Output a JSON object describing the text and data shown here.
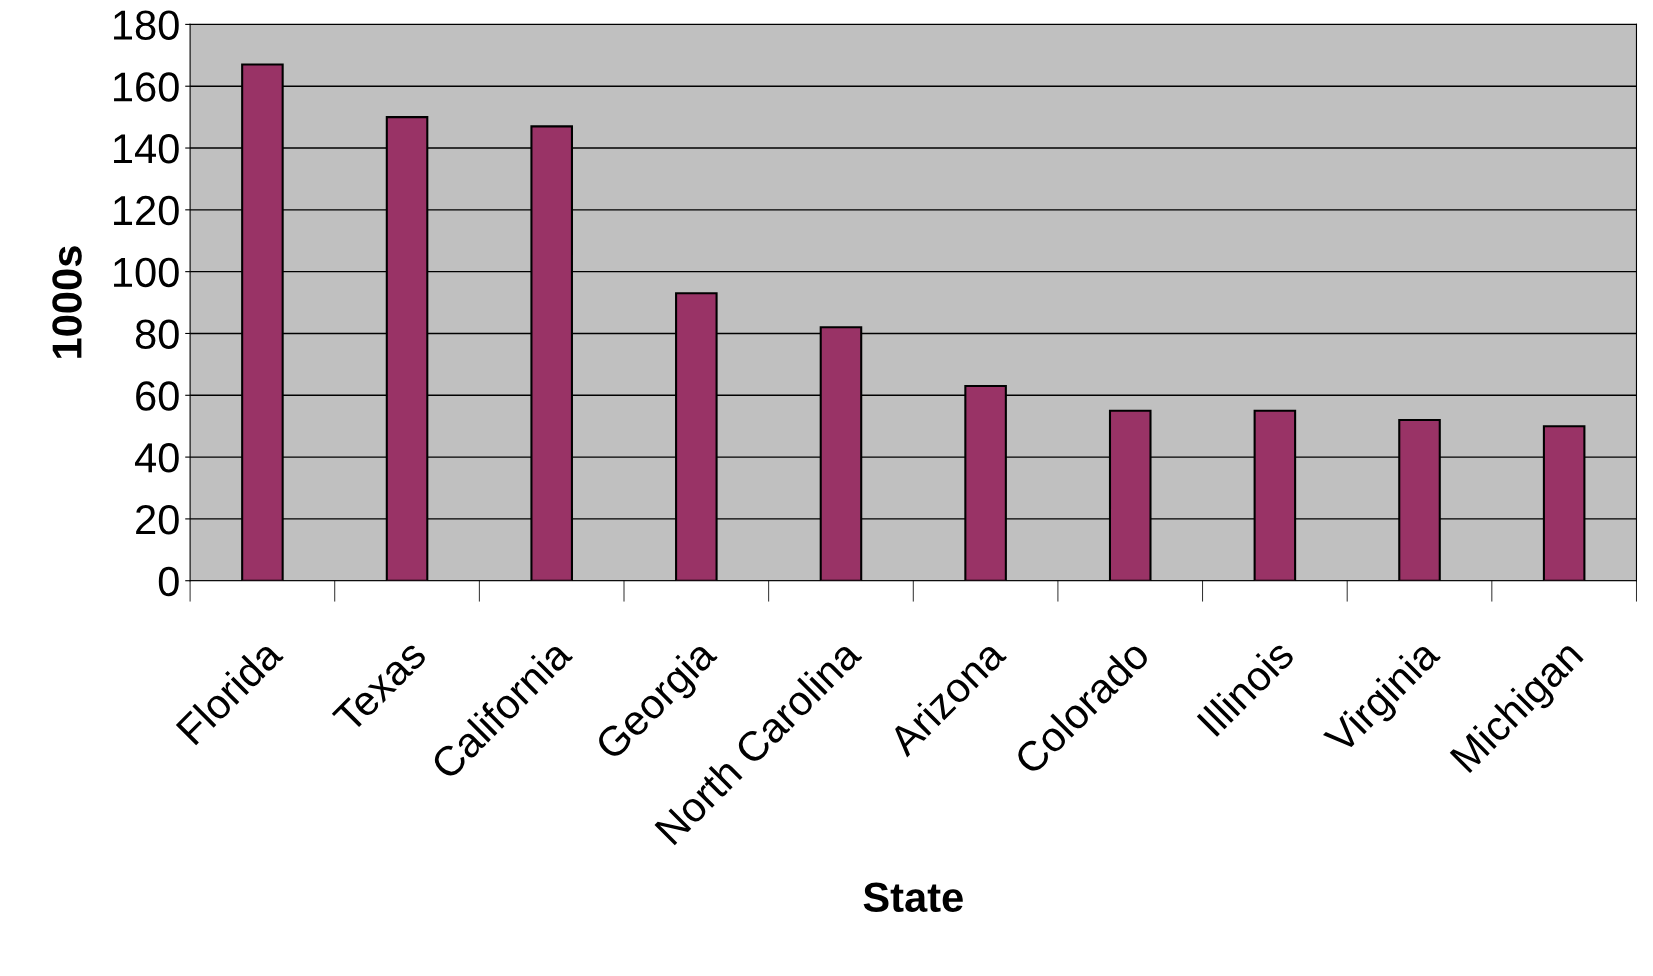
{
  "chart_data": {
    "type": "bar",
    "xlabel": "State",
    "ylabel": "1000s",
    "categories": [
      "Florida",
      "Texas",
      "California",
      "Georgia",
      "North Carolina",
      "Arizona",
      "Colorado",
      "Illinois",
      "Virginia",
      "Michigan"
    ],
    "values": [
      167,
      150,
      147,
      93,
      82,
      63,
      55,
      55,
      52,
      50
    ],
    "color": "#993366",
    "ylim": [
      0,
      180
    ],
    "yticks": [
      0,
      20,
      40,
      60,
      80,
      100,
      120,
      140,
      160,
      180
    ],
    "grid": "y",
    "legend": false
  }
}
